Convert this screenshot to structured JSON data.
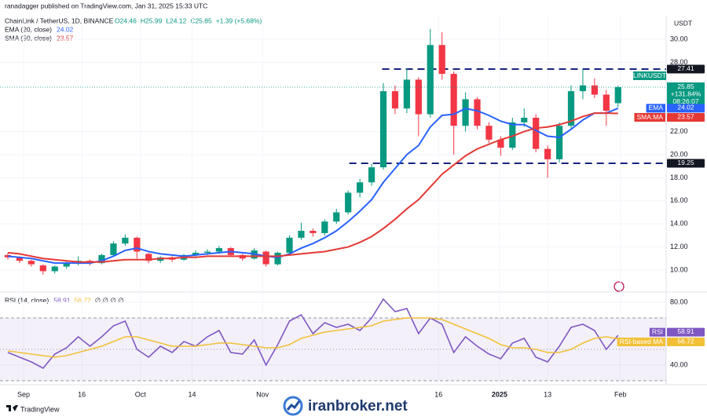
{
  "header": {
    "publisher": "ranadagger published on TradingView.com, Jan 31, 2025 15:33 UTC",
    "ohlc": [
      "O24.46",
      "H25.99",
      "L24.12",
      "C25.85",
      "+1.39 (+5.68%)"
    ],
    "watermark": "iranbroker.net",
    "brand": "TradingView"
  },
  "chart_data": [
    {
      "type": "candlestick",
      "title": "ChainLink / TetherUS, 1D, BINANCE",
      "currency": "USDT",
      "symbol": "LINKUSDT",
      "change": "+131.84%",
      "countdown": "08:26:07",
      "up_color": "#089981",
      "down_color": "#f23645",
      "open": [
        11.3,
        11.1,
        10.8,
        10.4,
        9.9,
        10.3,
        10.6,
        10.8,
        10.6,
        11.3,
        12.3,
        12.8,
        11.4,
        10.8,
        11.1,
        10.9,
        11.3,
        11.5,
        11.6,
        11.9,
        11.3,
        11.0,
        11.6,
        10.5,
        11.5,
        12.8,
        13.4,
        13.2,
        14.2,
        15.0,
        16.7,
        17.6,
        18.9,
        25.5,
        24.0,
        26.5,
        23.5,
        29.5,
        27.0,
        22.5,
        24.8,
        22.5,
        21.3,
        20.6,
        22.8,
        23.2,
        20.5,
        19.6,
        22.5,
        25.5,
        26.0,
        25.2,
        24.46
      ],
      "high": [
        11.5,
        11.2,
        10.9,
        10.5,
        10.4,
        10.8,
        11.2,
        10.9,
        11.4,
        12.5,
        13.1,
        12.9,
        11.5,
        11.2,
        11.2,
        11.4,
        11.7,
        11.8,
        12.1,
        12.0,
        11.4,
        11.9,
        11.7,
        11.6,
        13.0,
        14.1,
        13.6,
        14.4,
        15.3,
        16.9,
        17.9,
        19.2,
        26.2,
        26.0,
        27.5,
        26.7,
        30.9,
        30.6,
        27.2,
        25.4,
        25.0,
        22.8,
        21.6,
        23.2,
        24.0,
        23.5,
        20.8,
        22.8,
        26.0,
        27.4,
        26.6,
        25.6,
        25.99
      ],
      "low": [
        10.9,
        10.6,
        10.3,
        9.6,
        9.7,
        10.1,
        10.4,
        10.4,
        10.5,
        11.2,
        12.1,
        11.0,
        10.6,
        10.6,
        10.7,
        10.8,
        11.1,
        11.3,
        11.4,
        11.2,
        10.8,
        10.9,
        10.3,
        10.4,
        11.4,
        12.6,
        12.9,
        13.0,
        14.0,
        14.8,
        16.3,
        17.3,
        18.7,
        23.5,
        23.6,
        21.6,
        23.2,
        26.5,
        20.0,
        22.0,
        22.2,
        21.0,
        19.9,
        20.4,
        22.4,
        20.2,
        18.0,
        19.3,
        22.2,
        24.8,
        24.9,
        22.5,
        24.12
      ],
      "close": [
        11.1,
        10.8,
        10.5,
        9.9,
        10.3,
        10.6,
        10.8,
        10.6,
        11.3,
        12.3,
        12.8,
        11.6,
        10.8,
        11.1,
        10.9,
        11.3,
        11.5,
        11.6,
        11.9,
        11.3,
        11.0,
        11.7,
        10.5,
        11.5,
        12.8,
        13.4,
        13.2,
        14.2,
        15.0,
        16.7,
        17.6,
        18.9,
        25.5,
        24.0,
        26.5,
        23.5,
        29.5,
        27.0,
        22.5,
        24.8,
        22.5,
        21.3,
        20.6,
        22.8,
        23.2,
        20.5,
        19.6,
        22.5,
        25.5,
        26.0,
        25.2,
        23.8,
        25.85
      ],
      "series": [
        {
          "name": "EMA (20, close)",
          "tag": "EMA",
          "color": "#2962ff",
          "values": [
            11.2,
            11.1,
            11.0,
            10.8,
            10.6,
            10.6,
            10.6,
            10.6,
            10.8,
            11.2,
            11.7,
            11.9,
            11.6,
            11.4,
            11.3,
            11.2,
            11.3,
            11.4,
            11.5,
            11.6,
            11.5,
            11.4,
            11.2,
            11.1,
            11.4,
            11.9,
            12.3,
            12.8,
            13.4,
            14.2,
            15.1,
            16.1,
            17.6,
            18.8,
            20.0,
            20.8,
            22.4,
            23.4,
            23.5,
            24.0,
            23.8,
            23.4,
            22.9,
            22.6,
            22.6,
            22.1,
            21.6,
            21.5,
            22.2,
            23.0,
            23.6,
            23.6,
            24.02
          ]
        },
        {
          "name": "SMA (50, close)",
          "tag": "SMA:MA",
          "color": "#e53935",
          "values": [
            11.5,
            11.4,
            11.2,
            11.0,
            10.9,
            10.8,
            10.7,
            10.7,
            10.7,
            10.8,
            10.9,
            10.9,
            10.9,
            11.0,
            11.0,
            11.1,
            11.1,
            11.2,
            11.2,
            11.2,
            11.2,
            11.2,
            11.2,
            11.2,
            11.3,
            11.4,
            11.5,
            11.6,
            11.8,
            12.0,
            12.4,
            12.9,
            13.6,
            14.4,
            15.3,
            16.1,
            17.2,
            18.3,
            19.1,
            19.9,
            20.5,
            20.9,
            21.3,
            21.6,
            22.0,
            22.3,
            22.4,
            22.6,
            22.9,
            23.3,
            23.6,
            23.6,
            23.57
          ]
        }
      ],
      "levels": [
        27.41,
        19.25
      ],
      "level_color": "#1a237e",
      "ylim": [
        8.23,
        32.04
      ],
      "yticks": [
        {
          "value": 10,
          "label": "10.00"
        },
        {
          "value": 12,
          "label": "12.00"
        },
        {
          "value": 14,
          "label": "14.00"
        },
        {
          "value": 16,
          "label": "16.00"
        },
        {
          "value": 18,
          "label": "18.00"
        },
        {
          "value": 20,
          "label": "20.00"
        },
        {
          "value": 22,
          "label": "22.00"
        },
        {
          "value": 28,
          "label": "28.00"
        },
        {
          "value": 30,
          "label": "30.00"
        }
      ],
      "xlim": [
        -0.67,
        56.1
      ],
      "xticks": [
        {
          "value": 1.34,
          "label": "Sep"
        },
        {
          "value": 6.3,
          "label": "16"
        },
        {
          "value": 11.3,
          "label": "Oct"
        },
        {
          "value": 15.7,
          "label": "14"
        },
        {
          "value": 21.7,
          "label": "Nov"
        },
        {
          "value": 36.7,
          "label": "16"
        },
        {
          "value": 41.9,
          "label": "2025"
        },
        {
          "value": 46.0,
          "label": "13"
        },
        {
          "value": 52.2,
          "label": "Feb"
        }
      ]
    },
    {
      "type": "line",
      "title": "RSI (14, close)",
      "empty_marks": "∅ ∅ ∅ ∅",
      "series": [
        {
          "name": "RSI",
          "color": "#7e57c2",
          "values": [
            48,
            45,
            42,
            38,
            47,
            51,
            58,
            52,
            58,
            65,
            68,
            50,
            45,
            52,
            48,
            55,
            52,
            58,
            62,
            48,
            47,
            56,
            40,
            53,
            68,
            72,
            60,
            67,
            64,
            66,
            62,
            70,
            82,
            74,
            76,
            60,
            70,
            66,
            48,
            58,
            52,
            47,
            44,
            54,
            57,
            45,
            42,
            52,
            64,
            66,
            62,
            50,
            58.91
          ]
        },
        {
          "name": "RSI-based MA",
          "color": "#f2c037",
          "values": [
            49,
            48,
            47,
            46,
            45,
            46,
            48,
            50,
            52,
            55,
            58,
            58,
            56,
            54,
            52,
            52,
            52,
            53,
            54,
            54,
            53,
            52,
            51,
            51,
            53,
            57,
            59,
            61,
            62,
            63,
            64,
            65,
            68,
            69,
            70,
            70,
            70,
            69,
            66,
            63,
            60,
            57,
            53,
            51,
            51,
            50,
            48,
            48,
            50,
            54,
            57,
            58,
            56.72
          ]
        }
      ],
      "levels": [
        70,
        50,
        30
      ],
      "band_color": "#7e57c2",
      "ylim": [
        29,
        85
      ],
      "yticks": [
        {
          "value": 80,
          "label": "80.00"
        },
        {
          "value": 40,
          "label": "40.00"
        }
      ]
    }
  ]
}
